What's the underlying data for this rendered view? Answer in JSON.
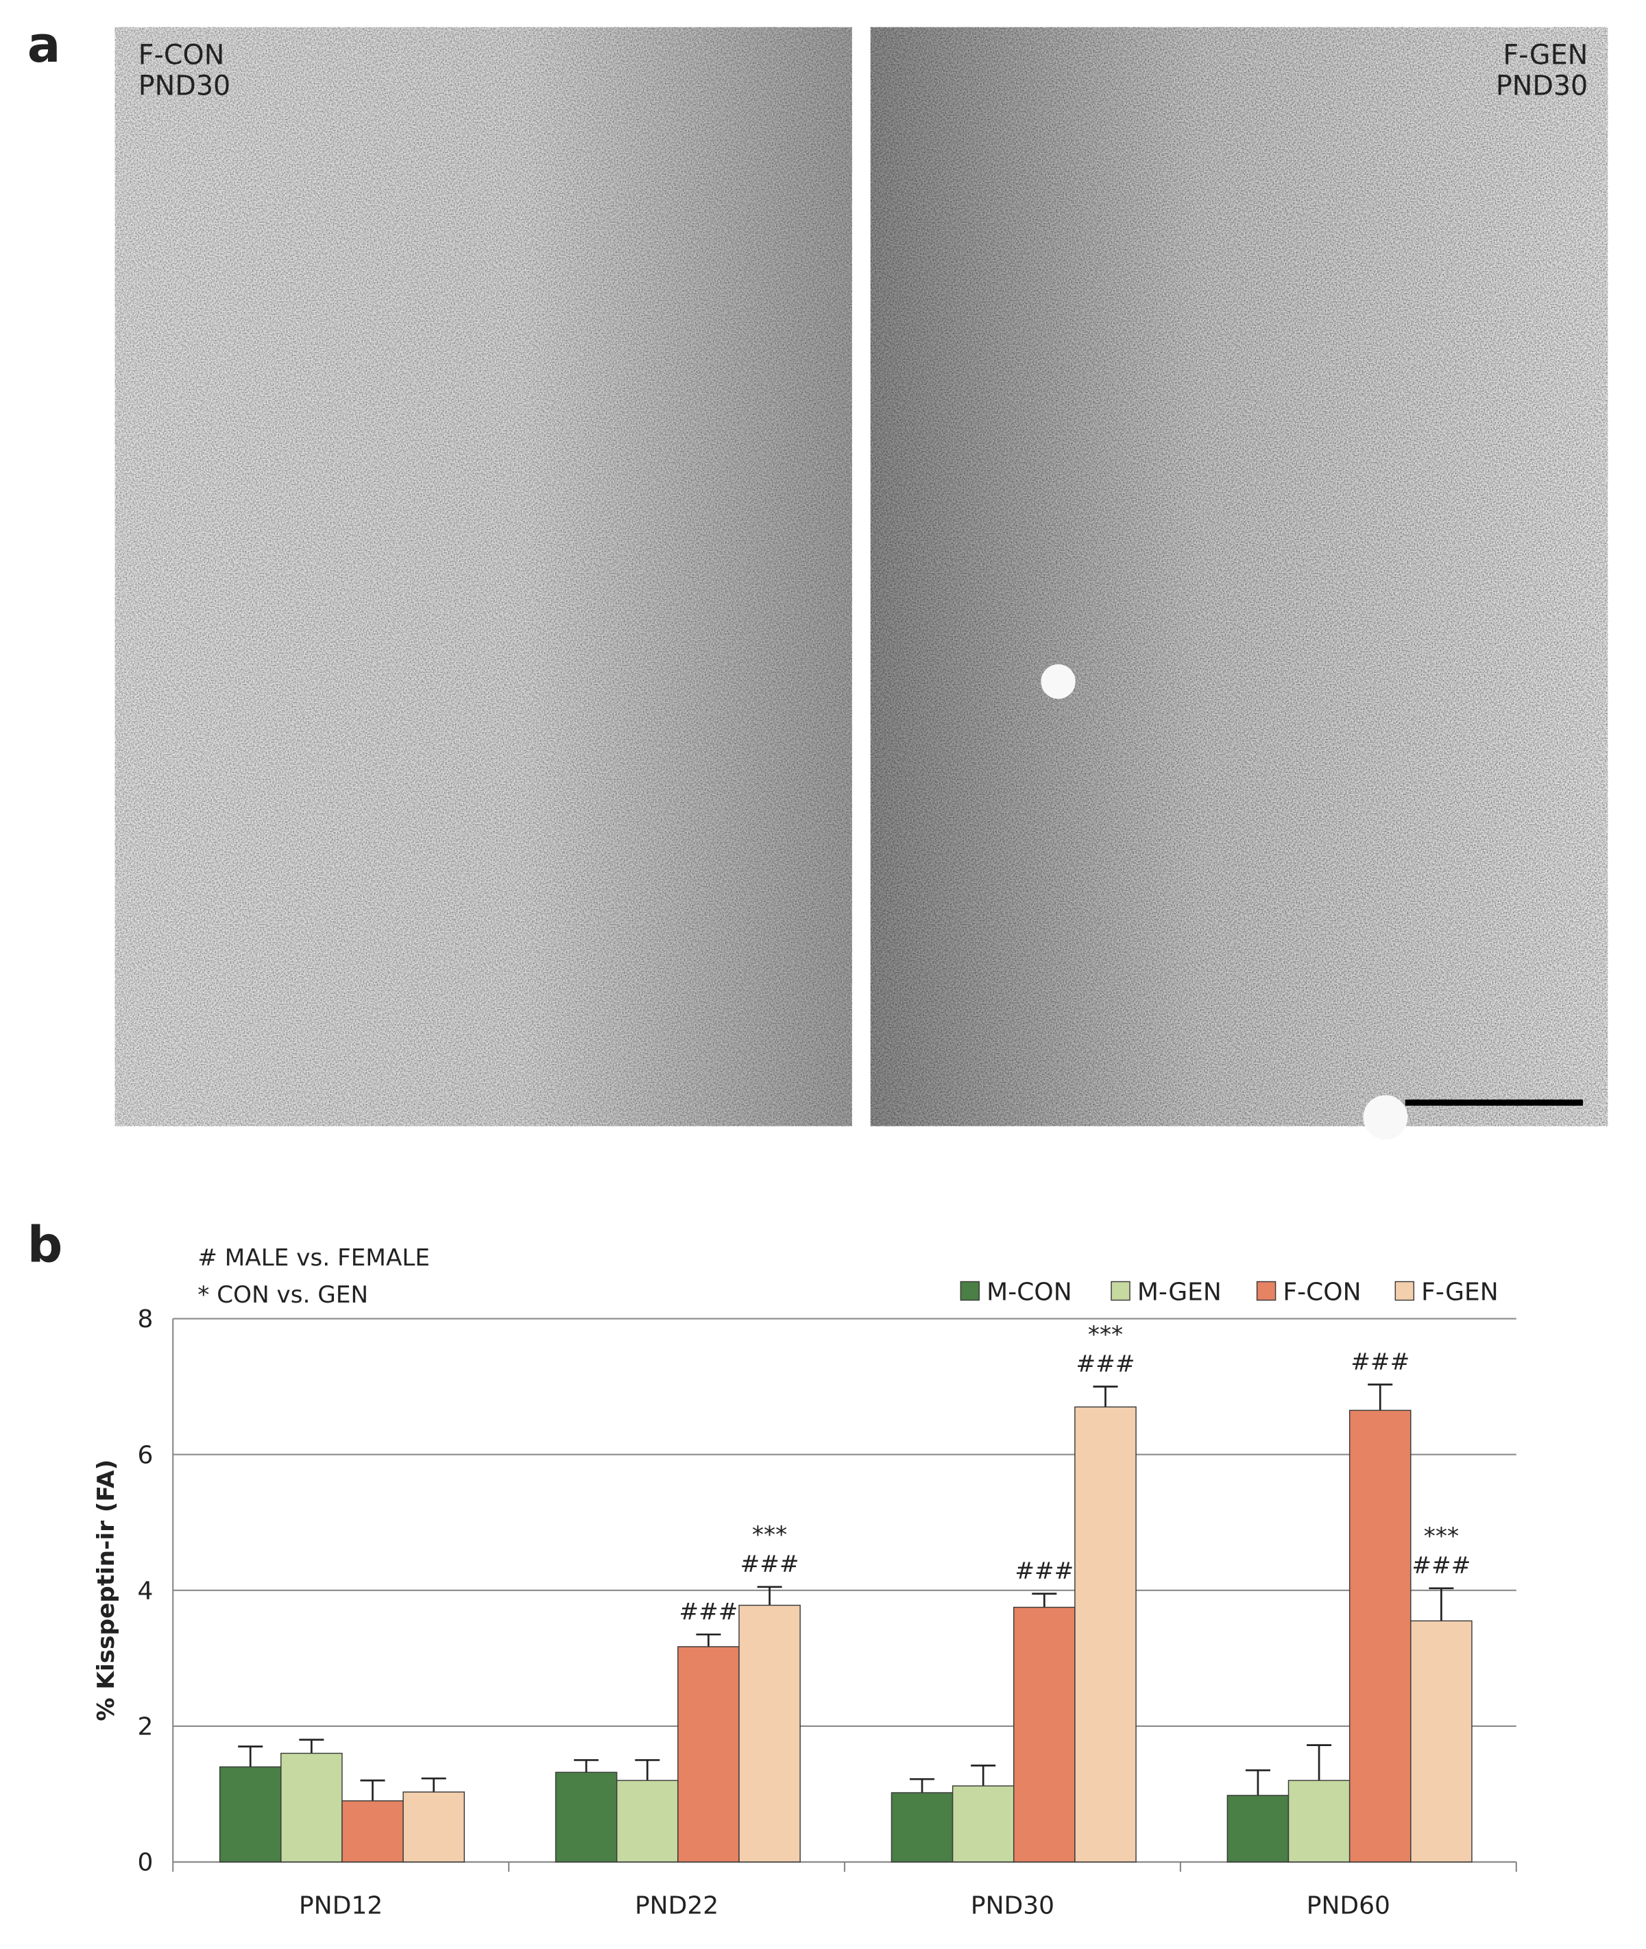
{
  "panel_a": {
    "label": "a",
    "images": [
      {
        "lines": [
          "F-CON",
          "PND30"
        ]
      },
      {
        "lines": [
          "F-GEN",
          "PND30"
        ]
      }
    ]
  },
  "chart_data": {
    "type": "bar",
    "panel_label": "b",
    "notes": [
      "# MALE vs. FEMALE",
      "* CON vs. GEN"
    ],
    "y_label": "% Kisspeptin-ir (FA)",
    "categories": [
      "PND12",
      "PND22",
      "PND30",
      "PND60"
    ],
    "series": [
      {
        "name": "M-CON",
        "color": "#4a7f45",
        "values": [
          1.4,
          1.32,
          1.02,
          0.98
        ],
        "errors": [
          0.3,
          0.18,
          0.2,
          0.37
        ],
        "labels": [
          null,
          null,
          null,
          null
        ]
      },
      {
        "name": "M-GEN",
        "color": "#c5d9a0",
        "values": [
          1.6,
          1.2,
          1.12,
          1.2
        ],
        "errors": [
          0.2,
          0.3,
          0.3,
          0.52
        ],
        "labels": [
          null,
          null,
          null,
          null
        ]
      },
      {
        "name": "F-CON",
        "color": "#e58363",
        "values": [
          0.9,
          3.17,
          3.75,
          6.65
        ],
        "errors": [
          0.3,
          0.18,
          0.2,
          0.38
        ],
        "labels": [
          null,
          [
            "###"
          ],
          [
            "###"
          ],
          [
            "###"
          ]
        ]
      },
      {
        "name": "F-GEN",
        "color": "#f3cfae",
        "values": [
          1.03,
          3.78,
          6.7,
          3.55
        ],
        "errors": [
          0.2,
          0.27,
          0.3,
          0.48
        ],
        "labels": [
          null,
          [
            "***",
            "###"
          ],
          [
            "***",
            "###"
          ],
          [
            "***",
            "###"
          ]
        ]
      }
    ],
    "ylim": [
      0,
      8
    ],
    "yticks": [
      0,
      2,
      4,
      6,
      8
    ],
    "grid": true
  }
}
